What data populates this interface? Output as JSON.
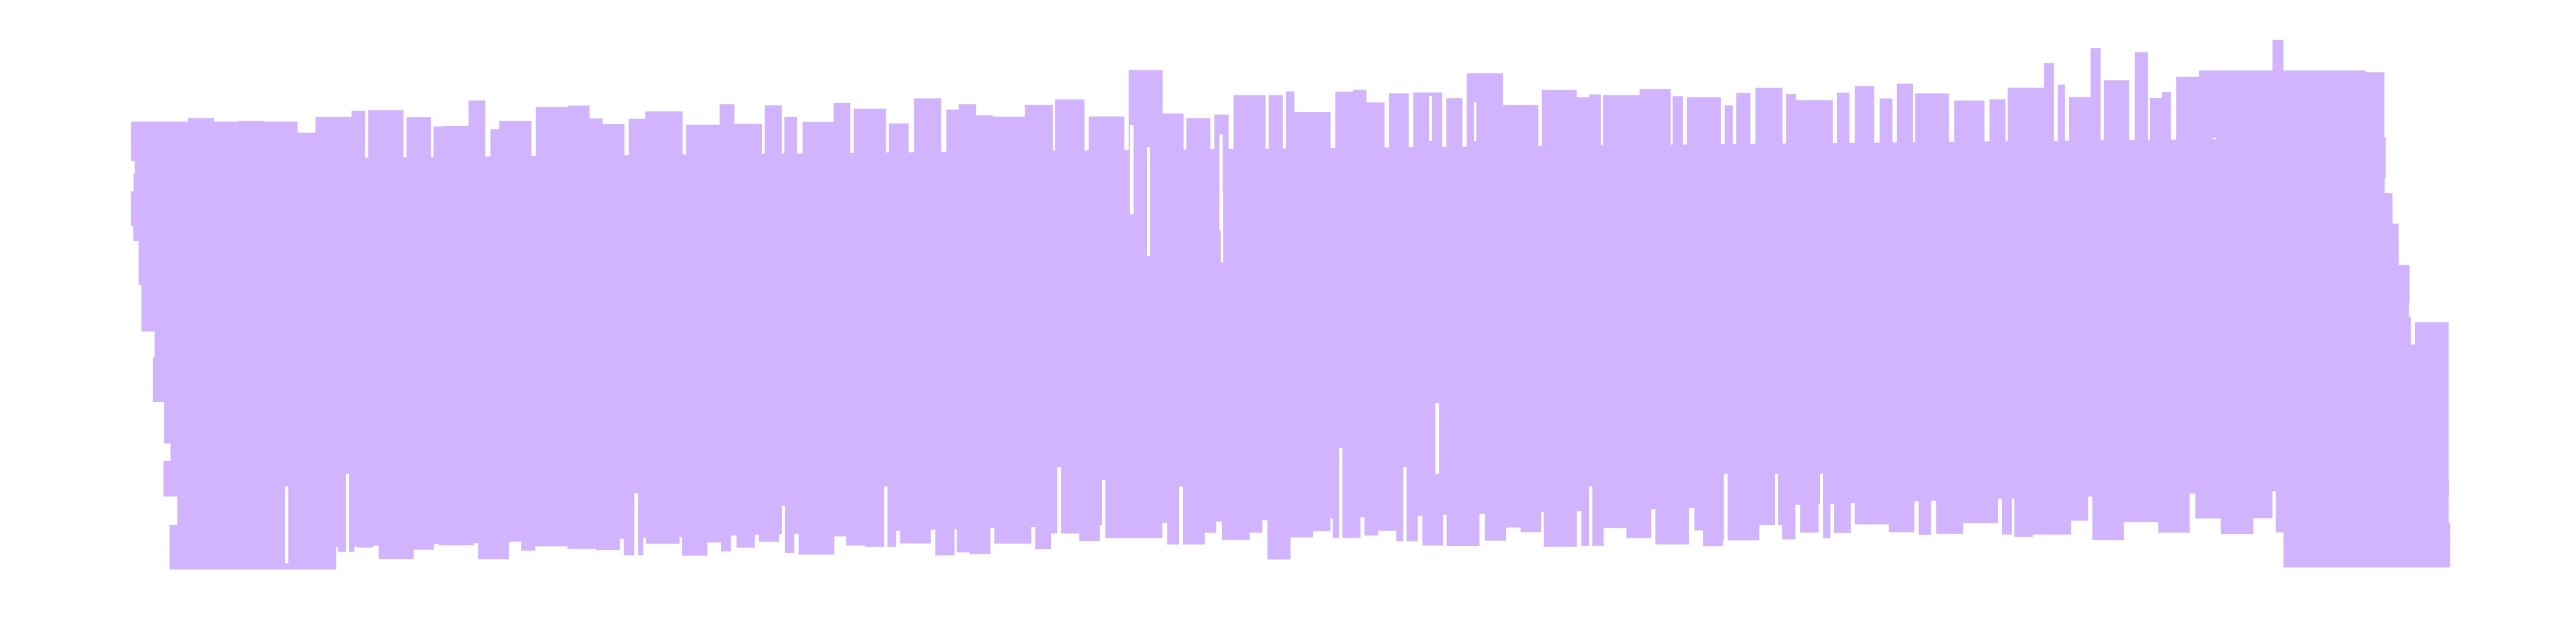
{
  "canvas": {
    "background": "#ffffff"
  },
  "shape": {
    "name": "ragged-lavender-strip",
    "fill": "#d2b4fe",
    "fill_opacity": 1,
    "stroke": "none"
  }
}
